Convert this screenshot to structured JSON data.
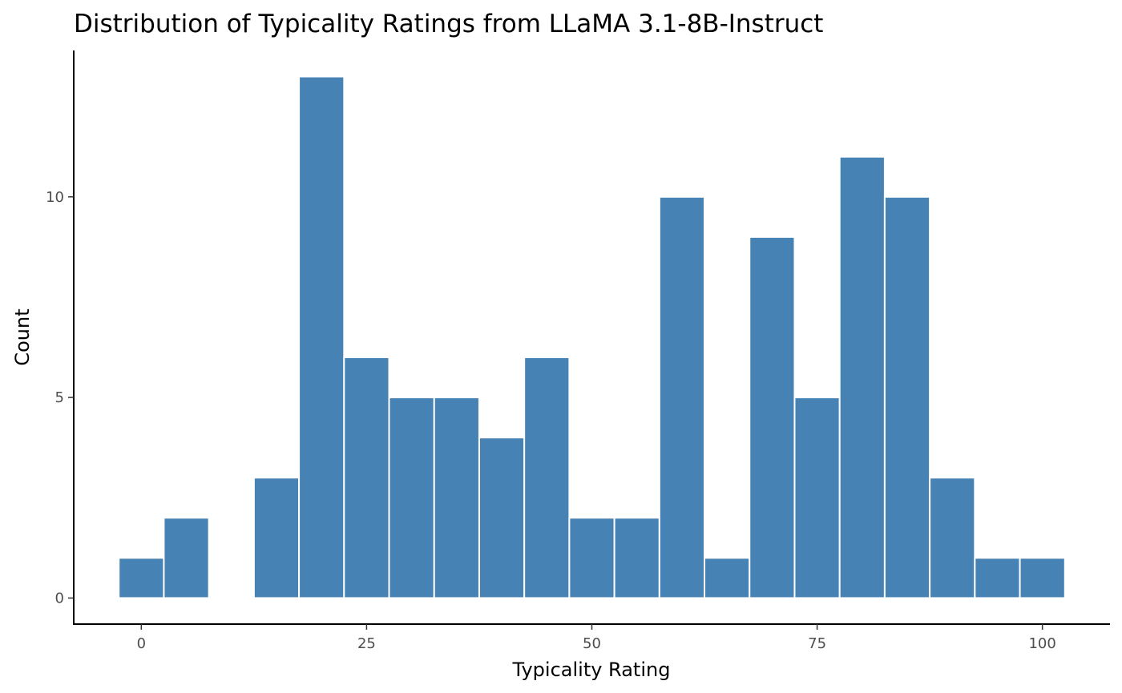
{
  "chart_data": {
    "type": "bar",
    "title": "Distribution of Typicality Ratings from LLaMA 3.1-8B-Instruct",
    "xlabel": "Typicality Rating",
    "ylabel": "Count",
    "bar_color": "#4682B4",
    "bar_outline_color": "#FFFFFF",
    "bin_width": 5,
    "bins": [
      {
        "center": 0,
        "count": 1
      },
      {
        "center": 5,
        "count": 2
      },
      {
        "center": 10,
        "count": 0
      },
      {
        "center": 15,
        "count": 3
      },
      {
        "center": 20,
        "count": 13
      },
      {
        "center": 25,
        "count": 6
      },
      {
        "center": 30,
        "count": 5
      },
      {
        "center": 35,
        "count": 5
      },
      {
        "center": 40,
        "count": 4
      },
      {
        "center": 45,
        "count": 6
      },
      {
        "center": 50,
        "count": 2
      },
      {
        "center": 55,
        "count": 2
      },
      {
        "center": 60,
        "count": 10
      },
      {
        "center": 65,
        "count": 1
      },
      {
        "center": 70,
        "count": 9
      },
      {
        "center": 75,
        "count": 5
      },
      {
        "center": 80,
        "count": 11
      },
      {
        "center": 85,
        "count": 10
      },
      {
        "center": 90,
        "count": 3
      },
      {
        "center": 95,
        "count": 1
      },
      {
        "center": 100,
        "count": 1
      }
    ],
    "xlim": [
      -7.5,
      107.5
    ],
    "ylim": [
      -0.65,
      13.65
    ],
    "x_ticks": [
      {
        "value": 0,
        "label": "0"
      },
      {
        "value": 25,
        "label": "25"
      },
      {
        "value": 50,
        "label": "50"
      },
      {
        "value": 75,
        "label": "75"
      },
      {
        "value": 100,
        "label": "100"
      }
    ],
    "y_ticks": [
      {
        "value": 0,
        "label": "0"
      },
      {
        "value": 5,
        "label": "5"
      },
      {
        "value": 10,
        "label": "10"
      }
    ],
    "grid": false,
    "legend": "none"
  }
}
